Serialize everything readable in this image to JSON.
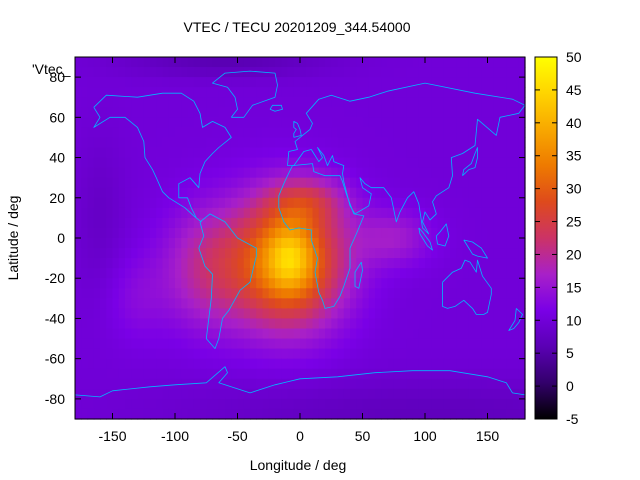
{
  "chart_data": {
    "type": "heatmap",
    "title": "VTEC / TECU 20201209_344.54000",
    "xlabel": "Longitude / deg",
    "ylabel": "Latitude / deg",
    "key_label": "'Vtec_",
    "xlim": [
      -180,
      180
    ],
    "ylim": [
      -90,
      90
    ],
    "x_ticks": [
      -150,
      -100,
      -50,
      0,
      50,
      100,
      150
    ],
    "y_ticks": [
      -80,
      -60,
      -40,
      -20,
      0,
      20,
      40,
      60,
      80
    ],
    "colorbar": {
      "range": [
        -5,
        50
      ],
      "ticks": [
        -5,
        0,
        5,
        10,
        15,
        20,
        25,
        30,
        35,
        40,
        45,
        50
      ],
      "palette": [
        "#000000",
        "#33006b",
        "#5a00b4",
        "#7a00e6",
        "#a820c8",
        "#cc3366",
        "#de4a1c",
        "#ee7a00",
        "#f8a800",
        "#ffd400",
        "#ffff00"
      ]
    },
    "grid": false,
    "background_tec": 10,
    "anomalies": [
      {
        "name": "southern-crest",
        "lon": -10,
        "lat": -12,
        "dlon": 45,
        "dlat": 32,
        "tec": 26
      },
      {
        "name": "core",
        "lon": -8,
        "lat": -10,
        "dlon": 18,
        "dlat": 16,
        "tec": 10
      },
      {
        "name": "atlantic-west",
        "lon": -75,
        "lat": -15,
        "dlon": 35,
        "dlat": 30,
        "tec": 9
      },
      {
        "name": "north-africa",
        "lon": 5,
        "lat": 18,
        "dlon": 30,
        "dlat": 12,
        "tec": 8
      },
      {
        "name": "indian-ocean",
        "lon": 75,
        "lat": 0,
        "dlon": 30,
        "dlat": 14,
        "tec": 6
      },
      {
        "name": "pacific-east",
        "lon": -130,
        "lat": -30,
        "dlon": 25,
        "dlat": 22,
        "tec": 3
      },
      {
        "name": "antarctic-low",
        "lon": 100,
        "lat": -88,
        "dlon": 200,
        "dlat": 18,
        "tec": -3
      },
      {
        "name": "arctic-low",
        "lon": -60,
        "lat": 88,
        "dlon": 80,
        "dlat": 8,
        "tec": -4
      },
      {
        "name": "pacific-west-low",
        "lon": -160,
        "lat": 10,
        "dlon": 20,
        "dlat": 40,
        "tec": -2
      }
    ],
    "coastlines": [
      {
        "name": "north-america",
        "points": [
          [
            -165,
            65
          ],
          [
            -155,
            71
          ],
          [
            -130,
            70
          ],
          [
            -110,
            72
          ],
          [
            -95,
            72
          ],
          [
            -85,
            68
          ],
          [
            -80,
            62
          ],
          [
            -78,
            55
          ],
          [
            -70,
            58
          ],
          [
            -60,
            55
          ],
          [
            -55,
            50
          ],
          [
            -65,
            45
          ],
          [
            -70,
            42
          ],
          [
            -76,
            38
          ],
          [
            -80,
            32
          ],
          [
            -81,
            25
          ],
          [
            -88,
            30
          ],
          [
            -97,
            27
          ],
          [
            -97,
            20
          ],
          [
            -90,
            20
          ],
          [
            -87,
            15
          ],
          [
            -83,
            10
          ],
          [
            -79,
            8
          ],
          [
            -85,
            11
          ],
          [
            -92,
            15
          ],
          [
            -105,
            20
          ],
          [
            -110,
            23
          ],
          [
            -115,
            30
          ],
          [
            -118,
            34
          ],
          [
            -124,
            40
          ],
          [
            -125,
            48
          ],
          [
            -130,
            55
          ],
          [
            -140,
            60
          ],
          [
            -152,
            60
          ],
          [
            -165,
            55
          ],
          [
            -160,
            60
          ],
          [
            -165,
            65
          ]
        ]
      },
      {
        "name": "greenland",
        "points": [
          [
            -55,
            60
          ],
          [
            -45,
            60
          ],
          [
            -38,
            66
          ],
          [
            -20,
            70
          ],
          [
            -18,
            76
          ],
          [
            -20,
            82
          ],
          [
            -40,
            83
          ],
          [
            -60,
            82
          ],
          [
            -70,
            77
          ],
          [
            -58,
            75
          ],
          [
            -52,
            70
          ],
          [
            -50,
            64
          ],
          [
            -55,
            60
          ]
        ]
      },
      {
        "name": "south-america",
        "points": [
          [
            -80,
            8
          ],
          [
            -77,
            1
          ],
          [
            -81,
            -5
          ],
          [
            -76,
            -14
          ],
          [
            -70,
            -18
          ],
          [
            -71,
            -30
          ],
          [
            -73,
            -40
          ],
          [
            -75,
            -50
          ],
          [
            -68,
            -55
          ],
          [
            -65,
            -50
          ],
          [
            -62,
            -40
          ],
          [
            -57,
            -36
          ],
          [
            -48,
            -26
          ],
          [
            -40,
            -22
          ],
          [
            -35,
            -9
          ],
          [
            -35,
            -5
          ],
          [
            -50,
            0
          ],
          [
            -60,
            8
          ],
          [
            -72,
            12
          ],
          [
            -80,
            8
          ]
        ]
      },
      {
        "name": "eurasia",
        "points": [
          [
            -10,
            36
          ],
          [
            -9,
            43
          ],
          [
            -2,
            44
          ],
          [
            -4,
            48
          ],
          [
            2,
            51
          ],
          [
            8,
            54
          ],
          [
            10,
            57
          ],
          [
            5,
            62
          ],
          [
            15,
            69
          ],
          [
            25,
            71
          ],
          [
            40,
            68
          ],
          [
            55,
            70
          ],
          [
            70,
            73
          ],
          [
            100,
            77
          ],
          [
            140,
            72
          ],
          [
            170,
            69
          ],
          [
            180,
            66
          ],
          [
            175,
            62
          ],
          [
            160,
            60
          ],
          [
            157,
            51
          ],
          [
            142,
            59
          ],
          [
            140,
            46
          ],
          [
            130,
            42
          ],
          [
            121,
            40
          ],
          [
            122,
            31
          ],
          [
            119,
            25
          ],
          [
            109,
            21
          ],
          [
            106,
            18
          ],
          [
            109,
            12
          ],
          [
            104,
            9
          ],
          [
            100,
            13
          ],
          [
            98,
            8
          ],
          [
            103,
            2
          ],
          [
            98,
            5
          ],
          [
            95,
            17
          ],
          [
            91,
            23
          ],
          [
            86,
            20
          ],
          [
            80,
            13
          ],
          [
            77,
            8
          ],
          [
            73,
            20
          ],
          [
            67,
            25
          ],
          [
            57,
            25
          ],
          [
            52,
            27
          ],
          [
            48,
            30
          ],
          [
            50,
            25
          ],
          [
            57,
            22
          ],
          [
            55,
            16
          ],
          [
            44,
            12
          ],
          [
            40,
            16
          ],
          [
            35,
            28
          ],
          [
            34,
            32
          ],
          [
            35,
            36
          ],
          [
            27,
            38
          ],
          [
            26,
            41
          ],
          [
            22,
            36
          ],
          [
            19,
            41
          ],
          [
            14,
            45
          ],
          [
            18,
            40
          ],
          [
            15,
            38
          ],
          [
            9,
            44
          ],
          [
            3,
            43
          ],
          [
            -5,
            36
          ],
          [
            -10,
            36
          ]
        ]
      },
      {
        "name": "africa",
        "points": [
          [
            -6,
            36
          ],
          [
            10,
            37
          ],
          [
            11,
            33
          ],
          [
            20,
            31
          ],
          [
            32,
            31
          ],
          [
            34,
            28
          ],
          [
            37,
            22
          ],
          [
            43,
            12
          ],
          [
            51,
            11
          ],
          [
            45,
            2
          ],
          [
            40,
            -5
          ],
          [
            40,
            -15
          ],
          [
            35,
            -24
          ],
          [
            32,
            -29
          ],
          [
            27,
            -34
          ],
          [
            20,
            -35
          ],
          [
            18,
            -31
          ],
          [
            15,
            -27
          ],
          [
            12,
            -17
          ],
          [
            14,
            -10
          ],
          [
            9,
            -1
          ],
          [
            9,
            4
          ],
          [
            -1,
            5
          ],
          [
            -8,
            4
          ],
          [
            -13,
            8
          ],
          [
            -17,
            15
          ],
          [
            -17,
            21
          ],
          [
            -13,
            27
          ],
          [
            -10,
            31
          ],
          [
            -6,
            36
          ]
        ]
      },
      {
        "name": "madagascar",
        "points": [
          [
            49,
            -12
          ],
          [
            50,
            -16
          ],
          [
            47,
            -25
          ],
          [
            44,
            -24
          ],
          [
            44,
            -17
          ],
          [
            49,
            -12
          ]
        ]
      },
      {
        "name": "australia",
        "points": [
          [
            114,
            -22
          ],
          [
            114,
            -34
          ],
          [
            118,
            -35
          ],
          [
            124,
            -34
          ],
          [
            131,
            -31
          ],
          [
            138,
            -35
          ],
          [
            141,
            -38
          ],
          [
            147,
            -38
          ],
          [
            150,
            -37
          ],
          [
            153,
            -28
          ],
          [
            153,
            -25
          ],
          [
            146,
            -19
          ],
          [
            142,
            -11
          ],
          [
            141,
            -17
          ],
          [
            136,
            -12
          ],
          [
            132,
            -11
          ],
          [
            129,
            -15
          ],
          [
            122,
            -17
          ],
          [
            114,
            -22
          ]
        ]
      },
      {
        "name": "antarctica",
        "points": [
          [
            -180,
            -78
          ],
          [
            -160,
            -79
          ],
          [
            -150,
            -76
          ],
          [
            -120,
            -74
          ],
          [
            -100,
            -73
          ],
          [
            -75,
            -72
          ],
          [
            -60,
            -64
          ],
          [
            -58,
            -67
          ],
          [
            -65,
            -72
          ],
          [
            -40,
            -77
          ],
          [
            -20,
            -73
          ],
          [
            0,
            -70
          ],
          [
            30,
            -69
          ],
          [
            60,
            -67
          ],
          [
            90,
            -66
          ],
          [
            120,
            -66
          ],
          [
            150,
            -69
          ],
          [
            165,
            -72
          ],
          [
            170,
            -77
          ],
          [
            180,
            -78
          ]
        ]
      },
      {
        "name": "uk",
        "points": [
          [
            -5,
            50
          ],
          [
            1,
            51
          ],
          [
            0,
            54
          ],
          [
            -2,
            57
          ],
          [
            -5,
            58
          ],
          [
            -5,
            55
          ],
          [
            -3,
            54
          ],
          [
            -5,
            52
          ],
          [
            -5,
            50
          ]
        ]
      },
      {
        "name": "japan",
        "points": [
          [
            130,
            31
          ],
          [
            135,
            34
          ],
          [
            140,
            35
          ],
          [
            142,
            40
          ],
          [
            142,
            45
          ],
          [
            140,
            42
          ],
          [
            137,
            37
          ],
          [
            131,
            34
          ],
          [
            130,
            31
          ]
        ]
      },
      {
        "name": "new-zealand",
        "points": [
          [
            173,
            -35
          ],
          [
            178,
            -38
          ],
          [
            175,
            -42
          ],
          [
            171,
            -45
          ],
          [
            167,
            -46
          ],
          [
            172,
            -41
          ],
          [
            173,
            -35
          ]
        ]
      },
      {
        "name": "borneo",
        "points": [
          [
            109,
            1
          ],
          [
            112,
            3
          ],
          [
            117,
            7
          ],
          [
            119,
            1
          ],
          [
            116,
            -4
          ],
          [
            110,
            -3
          ],
          [
            109,
            1
          ]
        ]
      },
      {
        "name": "sumatra",
        "points": [
          [
            95,
            5
          ],
          [
            98,
            3
          ],
          [
            104,
            -2
          ],
          [
            106,
            -6
          ],
          [
            102,
            -4
          ],
          [
            96,
            2
          ],
          [
            95,
            5
          ]
        ]
      },
      {
        "name": "new-guinea",
        "points": [
          [
            131,
            -1
          ],
          [
            138,
            -2
          ],
          [
            145,
            -5
          ],
          [
            150,
            -10
          ],
          [
            142,
            -9
          ],
          [
            138,
            -8
          ],
          [
            134,
            -4
          ],
          [
            131,
            -1
          ]
        ]
      },
      {
        "name": "iceland",
        "points": [
          [
            -24,
            64
          ],
          [
            -22,
            66
          ],
          [
            -15,
            66
          ],
          [
            -14,
            64
          ],
          [
            -20,
            63
          ],
          [
            -24,
            64
          ]
        ]
      }
    ]
  }
}
